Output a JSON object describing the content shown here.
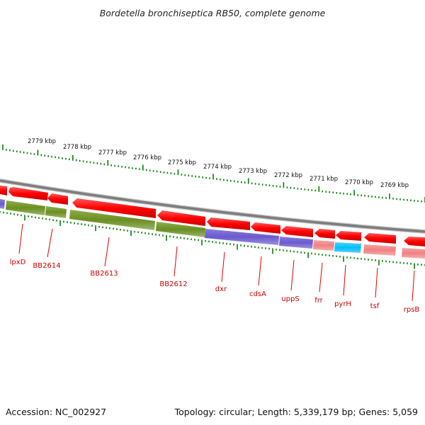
{
  "title": "Bordetella bronchiseptica RB50, complete genome",
  "footer": {
    "accession": "Accession: NC_002927",
    "summary": "Topology: circular; Length: 5,339,179 bp; Genes: 5,059"
  },
  "scale_labels": [
    "2779 kbp",
    "2778 kbp",
    "2777 kbp",
    "2776 kbp",
    "2775 kbp",
    "2774 kbp",
    "2773 kbp",
    "2772 kbp",
    "2771 kbp",
    "2770 kbp",
    "2769 kbp"
  ],
  "gene_labels": [
    "lpxD",
    "BB2614",
    "BB2613",
    "BB2612",
    "dxr",
    "cdsA",
    "uppS",
    "frr",
    "pyrH",
    "tsf",
    "rpsB"
  ],
  "colors": {
    "cds_forward": "#ff0000",
    "category_green": "#6b8e23",
    "category_purple": "#6a5acd",
    "category_pink": "#f08080",
    "category_cyan": "#00bfff",
    "backbone": "#808080",
    "tick_green": "#008000",
    "label_red": "#cc0000"
  }
}
